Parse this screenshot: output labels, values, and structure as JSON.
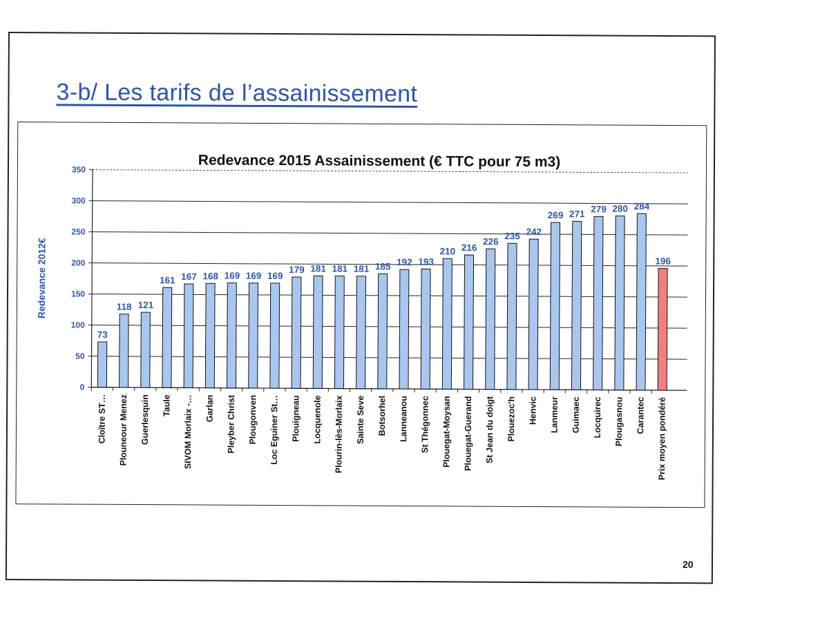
{
  "slide": {
    "title": "3-b/ Les tarifs de l’assainissement",
    "page_number": "20"
  },
  "colors": {
    "bar": "#a9c6ee",
    "bar_highlight": "#f08080",
    "title": "#2f55a4",
    "labels": "#2f55a4"
  },
  "chart_data": {
    "type": "bar",
    "title": "Redevance 2015 Assainissement (€ TTC pour 75 m3)",
    "xlabel": "",
    "ylabel": "Redevance 2012€",
    "ylim": [
      0,
      350
    ],
    "yticks": [
      0,
      50,
      100,
      150,
      200,
      250,
      300,
      350
    ],
    "grid": true,
    "categories": [
      "Cloître ST…",
      "Plouneour Menez",
      "Guerlesquin",
      "Taule",
      "SIVOM Morlaix -…",
      "Garlan",
      "Pleyber Christ",
      "Plougonven",
      "Loc Eguiner St…",
      "Plouigneau",
      "Locquenole",
      "Plourin-lès-Morlaix",
      "Sainte Seve",
      "Botsorhel",
      "Lanneanou",
      "St Thégonnec",
      "Plouegat-Moysan",
      "Plouegat-Guerand",
      "St Jean du doigt",
      "Plouezoc'h",
      "Henvic",
      "Lanmeur",
      "Guimaec",
      "Locquirec",
      "Plougasnou",
      "Carantec",
      "Prix moyen pondéré"
    ],
    "values": [
      73,
      118,
      121,
      161,
      167,
      168,
      169,
      169,
      169,
      179,
      181,
      181,
      181,
      185,
      192,
      193,
      210,
      216,
      226,
      235,
      242,
      269,
      271,
      279,
      280,
      284,
      196
    ],
    "data_labels": [
      "73",
      "118",
      "121",
      "161",
      "167",
      "168",
      "169",
      "169",
      "169",
      "179",
      "181",
      "181",
      "181",
      "185",
      "192",
      "193",
      "210",
      "216",
      "226",
      "235",
      "242",
      "269",
      "271",
      "279",
      "280",
      "284",
      "196"
    ],
    "highlight_index": 26
  }
}
